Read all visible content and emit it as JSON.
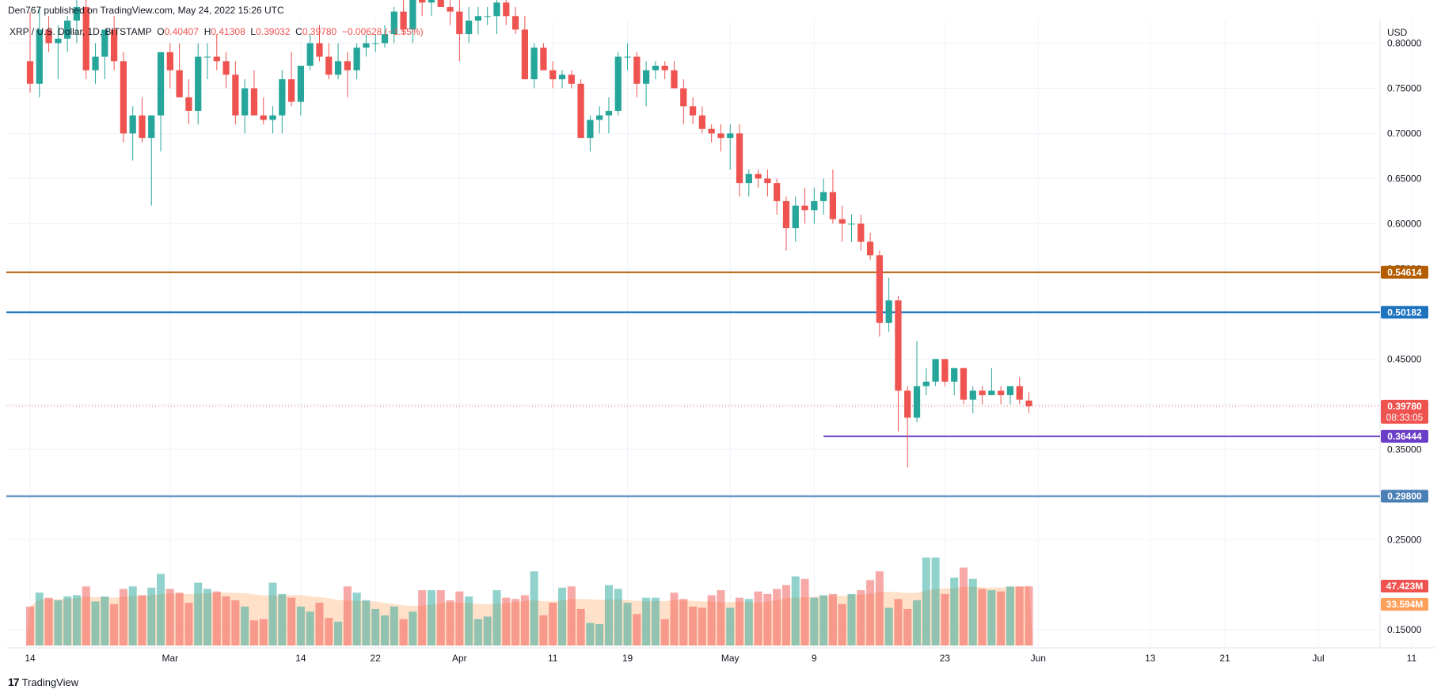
{
  "header": {
    "published_by": "Den767 published on TradingView.com, May 24, 2022 15:26 UTC"
  },
  "legend": {
    "symbol": "XRP / U.S. Dollar, 1D, BITSTAMP",
    "o_label": "O",
    "o": "0.40407",
    "h_label": "H",
    "h": "0.41308",
    "l_label": "L",
    "l": "0.39032",
    "c_label": "C",
    "c": "0.39780",
    "change": "−0.00628 (−1.55%)"
  },
  "footer": {
    "brand": "TradingView",
    "logo_glyph": "17"
  },
  "colors": {
    "up": "#26a69a",
    "down": "#ef5350",
    "grid": "#f0f3fa",
    "line_orange": "#b35c00",
    "line_blue": "#1e73be",
    "line_purple": "#6a3ec7",
    "line_lightblue": "#4a7fb5",
    "vol_ma": "#ffcca3",
    "vol_ma_tag": "#ff9f5a"
  },
  "chart_data": {
    "type": "candlestick",
    "currency": "USD",
    "price_axis": {
      "ticks": [
        "0.80000",
        "0.75000",
        "0.70000",
        "0.65000",
        "0.60000",
        "0.55000",
        "0.50000",
        "0.45000",
        "0.40000",
        "0.35000",
        "0.30000",
        "0.25000",
        "0.15000"
      ],
      "range": [
        0.13,
        0.825
      ]
    },
    "time_axis": {
      "labels": [
        "14",
        "Mar",
        "14",
        "22",
        "Apr",
        "11",
        "19",
        "May",
        "9",
        "23",
        "Jun",
        "13",
        "21",
        "Jul",
        "11"
      ],
      "label_days": [
        0,
        15,
        29,
        37,
        46,
        56,
        64,
        75,
        84,
        98,
        108,
        120,
        128,
        138,
        148
      ],
      "total_days": 155
    },
    "horizontal_levels": [
      {
        "value": 0.54614,
        "label": "0.54614",
        "color": "#b35c00"
      },
      {
        "value": 0.50182,
        "label": "0.50182",
        "color": "#1e73be"
      },
      {
        "value": 0.36444,
        "label": "0.36444",
        "color": "#6a3ec7",
        "start_day": 85
      },
      {
        "value": 0.298,
        "label": "0.29800",
        "color": "#4a7fb5"
      }
    ],
    "last_price": {
      "value": 0.3978,
      "label": "0.39780",
      "countdown": "08:33:05"
    },
    "volume_tags": {
      "volume": "47.423M",
      "volume_ma": "33.594M"
    },
    "volume_max_millions": 148,
    "candles_ohlc": [
      [
        0.78,
        0.835,
        0.745,
        0.755
      ],
      [
        0.755,
        0.84,
        0.74,
        0.815
      ],
      [
        0.815,
        0.83,
        0.79,
        0.8
      ],
      [
        0.8,
        0.82,
        0.76,
        0.805
      ],
      [
        0.805,
        0.83,
        0.79,
        0.825
      ],
      [
        0.825,
        0.85,
        0.8,
        0.84
      ],
      [
        0.84,
        0.86,
        0.76,
        0.77
      ],
      [
        0.77,
        0.8,
        0.755,
        0.785
      ],
      [
        0.785,
        0.81,
        0.76,
        0.815
      ],
      [
        0.815,
        0.83,
        0.77,
        0.78
      ],
      [
        0.78,
        0.79,
        0.69,
        0.7
      ],
      [
        0.7,
        0.73,
        0.67,
        0.72
      ],
      [
        0.72,
        0.74,
        0.69,
        0.695
      ],
      [
        0.695,
        0.72,
        0.62,
        0.72
      ],
      [
        0.72,
        0.79,
        0.68,
        0.79
      ],
      [
        0.79,
        0.8,
        0.75,
        0.77
      ],
      [
        0.77,
        0.8,
        0.74,
        0.74
      ],
      [
        0.74,
        0.76,
        0.71,
        0.725
      ],
      [
        0.725,
        0.8,
        0.71,
        0.785
      ],
      [
        0.785,
        0.8,
        0.76,
        0.785
      ],
      [
        0.785,
        0.81,
        0.77,
        0.78
      ],
      [
        0.78,
        0.79,
        0.75,
        0.765
      ],
      [
        0.765,
        0.78,
        0.71,
        0.72
      ],
      [
        0.72,
        0.76,
        0.7,
        0.75
      ],
      [
        0.75,
        0.77,
        0.72,
        0.72
      ],
      [
        0.72,
        0.74,
        0.71,
        0.715
      ],
      [
        0.715,
        0.73,
        0.7,
        0.72
      ],
      [
        0.72,
        0.77,
        0.7,
        0.76
      ],
      [
        0.76,
        0.79,
        0.73,
        0.735
      ],
      [
        0.735,
        0.77,
        0.72,
        0.775
      ],
      [
        0.775,
        0.81,
        0.77,
        0.8
      ],
      [
        0.8,
        0.82,
        0.78,
        0.785
      ],
      [
        0.785,
        0.8,
        0.76,
        0.765
      ],
      [
        0.765,
        0.8,
        0.76,
        0.78
      ],
      [
        0.78,
        0.79,
        0.74,
        0.77
      ],
      [
        0.77,
        0.8,
        0.76,
        0.795
      ],
      [
        0.795,
        0.81,
        0.785,
        0.8
      ],
      [
        0.8,
        0.81,
        0.79,
        0.8
      ],
      [
        0.8,
        0.82,
        0.795,
        0.81
      ],
      [
        0.81,
        0.84,
        0.8,
        0.835
      ],
      [
        0.835,
        0.85,
        0.81,
        0.815
      ],
      [
        0.815,
        0.86,
        0.8,
        0.85
      ],
      [
        0.85,
        0.88,
        0.83,
        0.845
      ],
      [
        0.845,
        0.86,
        0.83,
        0.855
      ],
      [
        0.855,
        0.87,
        0.84,
        0.84
      ],
      [
        0.84,
        0.86,
        0.82,
        0.835
      ],
      [
        0.835,
        0.86,
        0.78,
        0.81
      ],
      [
        0.81,
        0.84,
        0.8,
        0.825
      ],
      [
        0.825,
        0.84,
        0.81,
        0.83
      ],
      [
        0.83,
        0.84,
        0.82,
        0.83
      ],
      [
        0.83,
        0.85,
        0.81,
        0.845
      ],
      [
        0.845,
        0.85,
        0.82,
        0.83
      ],
      [
        0.83,
        0.84,
        0.81,
        0.815
      ],
      [
        0.815,
        0.83,
        0.76,
        0.76
      ],
      [
        0.76,
        0.8,
        0.75,
        0.795
      ],
      [
        0.795,
        0.8,
        0.77,
        0.77
      ],
      [
        0.77,
        0.78,
        0.75,
        0.76
      ],
      [
        0.76,
        0.77,
        0.75,
        0.765
      ],
      [
        0.765,
        0.77,
        0.75,
        0.755
      ],
      [
        0.755,
        0.76,
        0.7,
        0.695
      ],
      [
        0.695,
        0.72,
        0.68,
        0.715
      ],
      [
        0.715,
        0.73,
        0.7,
        0.72
      ],
      [
        0.72,
        0.74,
        0.7,
        0.725
      ],
      [
        0.725,
        0.79,
        0.72,
        0.785
      ],
      [
        0.785,
        0.8,
        0.77,
        0.785
      ],
      [
        0.785,
        0.79,
        0.74,
        0.755
      ],
      [
        0.755,
        0.78,
        0.73,
        0.77
      ],
      [
        0.77,
        0.78,
        0.76,
        0.775
      ],
      [
        0.775,
        0.78,
        0.76,
        0.77
      ],
      [
        0.77,
        0.78,
        0.75,
        0.75
      ],
      [
        0.75,
        0.76,
        0.71,
        0.73
      ],
      [
        0.73,
        0.74,
        0.71,
        0.72
      ],
      [
        0.72,
        0.73,
        0.7,
        0.705
      ],
      [
        0.705,
        0.71,
        0.69,
        0.7
      ],
      [
        0.7,
        0.71,
        0.68,
        0.695
      ],
      [
        0.695,
        0.71,
        0.66,
        0.7
      ],
      [
        0.7,
        0.71,
        0.63,
        0.645
      ],
      [
        0.645,
        0.66,
        0.63,
        0.655
      ],
      [
        0.655,
        0.66,
        0.64,
        0.65
      ],
      [
        0.65,
        0.66,
        0.63,
        0.645
      ],
      [
        0.645,
        0.65,
        0.61,
        0.625
      ],
      [
        0.625,
        0.63,
        0.57,
        0.595
      ],
      [
        0.595,
        0.63,
        0.58,
        0.62
      ],
      [
        0.62,
        0.64,
        0.6,
        0.615
      ],
      [
        0.615,
        0.64,
        0.6,
        0.625
      ],
      [
        0.625,
        0.65,
        0.61,
        0.635
      ],
      [
        0.635,
        0.66,
        0.6,
        0.605
      ],
      [
        0.605,
        0.62,
        0.58,
        0.6
      ],
      [
        0.6,
        0.61,
        0.58,
        0.6
      ],
      [
        0.6,
        0.61,
        0.57,
        0.58
      ],
      [
        0.58,
        0.59,
        0.56,
        0.565
      ],
      [
        0.565,
        0.57,
        0.475,
        0.49
      ],
      [
        0.49,
        0.54,
        0.48,
        0.515
      ],
      [
        0.515,
        0.52,
        0.37,
        0.415
      ],
      [
        0.415,
        0.42,
        0.33,
        0.385
      ],
      [
        0.385,
        0.47,
        0.38,
        0.42
      ],
      [
        0.42,
        0.44,
        0.41,
        0.425
      ],
      [
        0.425,
        0.45,
        0.42,
        0.45
      ],
      [
        0.45,
        0.45,
        0.42,
        0.425
      ],
      [
        0.425,
        0.44,
        0.41,
        0.44
      ],
      [
        0.44,
        0.44,
        0.4,
        0.405
      ],
      [
        0.405,
        0.42,
        0.39,
        0.415
      ],
      [
        0.415,
        0.42,
        0.4,
        0.41
      ],
      [
        0.41,
        0.44,
        0.41,
        0.415
      ],
      [
        0.415,
        0.42,
        0.4,
        0.41
      ],
      [
        0.41,
        0.42,
        0.4,
        0.42
      ],
      [
        0.42,
        0.43,
        0.4,
        0.405
      ],
      [
        0.40407,
        0.41308,
        0.39032,
        0.3978
      ]
    ],
    "volume_millions": [
      31,
      42,
      38,
      36,
      39,
      40,
      47,
      35,
      39,
      33,
      45,
      47,
      40,
      46,
      57,
      45,
      42,
      34,
      50,
      45,
      43,
      39,
      36,
      31,
      20,
      21,
      50,
      41,
      38,
      31,
      27,
      34,
      22,
      19,
      47,
      42,
      36,
      29,
      24,
      31,
      21,
      27,
      44,
      44,
      44,
      36,
      43,
      39,
      21,
      23,
      44,
      38,
      37,
      40,
      59,
      24,
      34,
      46,
      47,
      29,
      18,
      17,
      48,
      45,
      34,
      25,
      38,
      38,
      21,
      42,
      37,
      31,
      30,
      40,
      44,
      30,
      38,
      37,
      43,
      41,
      45,
      48,
      55,
      53,
      38,
      40,
      41,
      33,
      41,
      44,
      52,
      59,
      30,
      37,
      29,
      36,
      70,
      70,
      41,
      54,
      62,
      53,
      45,
      44,
      43,
      47,
      47,
      47
    ]
  }
}
